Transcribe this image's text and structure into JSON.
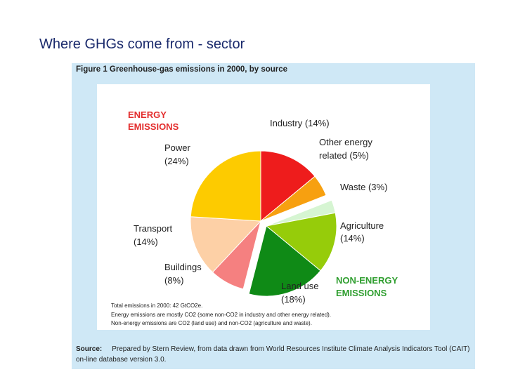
{
  "slide": {
    "title": "Where GHGs come from - sector"
  },
  "figure": {
    "caption": "Figure 1 Greenhouse-gas emissions in 2000, by source",
    "total_note": "Total emissions in 2000: 42 GtCO2e.",
    "note_line1": "Energy emissions are mostly CO2 (some non-CO2 in industry and other energy related).",
    "note_line2": "Non-energy emissions are CO2 (land use) and non-CO2 (agriculture and waste).",
    "source_label": "Source:",
    "source_text": "Prepared by Stern Review, from data drawn from World Resources Institute Climate Analysis Indicators Tool (CAIT) on-line database version 3.0."
  },
  "chart_data": {
    "type": "pie",
    "title": "Greenhouse-gas emissions in 2000, by source",
    "groups": [
      {
        "name_line1": "ENERGY",
        "name_line2": "EMISSIONS",
        "color": "#e32d2d"
      },
      {
        "name_line1": "NON-ENERGY",
        "name_line2": "EMISSIONS",
        "color": "#2f9e2f"
      }
    ],
    "slices": [
      {
        "name": "Industry",
        "value": 14,
        "label_line1": "Industry (14%)",
        "label_line2": "",
        "color": "#ee1c1c",
        "group": "energy"
      },
      {
        "name": "Other energy related",
        "value": 5,
        "label_line1": "Other energy",
        "label_line2": "related (5%)",
        "color": "#f7a010",
        "group": "energy"
      },
      {
        "name": "Waste",
        "value": 3,
        "label_line1": "Waste (3%)",
        "label_line2": "",
        "color": "#d6f5d2",
        "group": "non-energy"
      },
      {
        "name": "Agriculture",
        "value": 14,
        "label_line1": "Agriculture",
        "label_line2": "(14%)",
        "color": "#96cc0a",
        "group": "non-energy"
      },
      {
        "name": "Land use",
        "value": 18,
        "label_line1": "Land use",
        "label_line2": "(18%)",
        "color": "#0f8a16",
        "group": "non-energy"
      },
      {
        "name": "Buildings",
        "value": 8,
        "label_line1": "Buildings",
        "label_line2": "(8%)",
        "color": "#f58080",
        "group": "energy"
      },
      {
        "name": "Transport",
        "value": 14,
        "label_line1": "Transport",
        "label_line2": "(14%)",
        "color": "#fdd0a6",
        "group": "energy"
      },
      {
        "name": "Power",
        "value": 24,
        "label_line1": "Power",
        "label_line2": "(24%)",
        "color": "#fdcb00",
        "group": "energy"
      }
    ]
  }
}
